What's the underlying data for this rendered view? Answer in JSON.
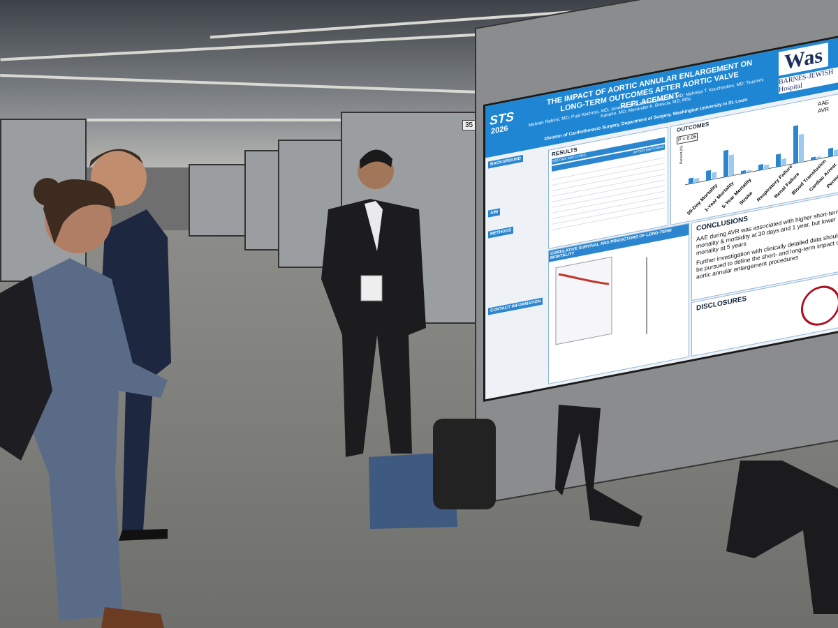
{
  "poster": {
    "number": "35",
    "badge": "STS",
    "badge_year": "2026",
    "title": "THE IMPACT OF AORTIC ANNULAR ENLARGEMENT ON LONG-TERM OUTCOMES AFTER AORTIC VALVE REPLACEMENT",
    "authors": "Mehran Rahimi, MD; Puja Kachroo, MD; June He, MS, MBBS; Mary Siki, MD; Nicholas T. Kouchoukos, MD; Tsuyoshi Kaneko, MD; Alexander A. Brescia, MD, MSc",
    "affiliation": "Division of Cardiothoracic Surgery, Department of Surgery, Washington University in St. Louis",
    "institution": "Was",
    "hospital": "BARNES-JEWISH Hospital",
    "sections": [
      "BACKGROUND",
      "AIM",
      "METHODS",
      "CONTACT INFORMATION"
    ],
    "results": {
      "title": "RESULTS",
      "before": "BEFORE MATCHING",
      "after": "AFTER MATCHING"
    },
    "outcomes": {
      "title": "OUTCOMES",
      "note": "P < 0.05",
      "ylabel": "Percent (%)",
      "legend": [
        "AAE",
        "AVR"
      ],
      "categories": [
        "30-Day Mortality",
        "1-Year Mortality",
        "5-Year Mortality",
        "Stroke",
        "Respiratory Failure",
        "Renal Failure",
        "Blood Transfusion",
        "Cardiac Arrest",
        "Permanent Pacemaker"
      ]
    },
    "survival_title": "CUMULATIVE SURVIVAL AND PREDICTORS OF LONG-TERM MORTALITY",
    "conclusions": {
      "title": "CONCLUSIONS",
      "bullets": [
        "AAE during AVR was associated with higher short-term mortality & morbidity at 30 days and 1 year, but lower mortality at 5 years",
        "Further investigation with clinically detailed data should be pursued to define the short- and long-term impact of aortic annular enlargement procedures"
      ]
    },
    "disclosures_title": "DISCLOSURES"
  }
}
